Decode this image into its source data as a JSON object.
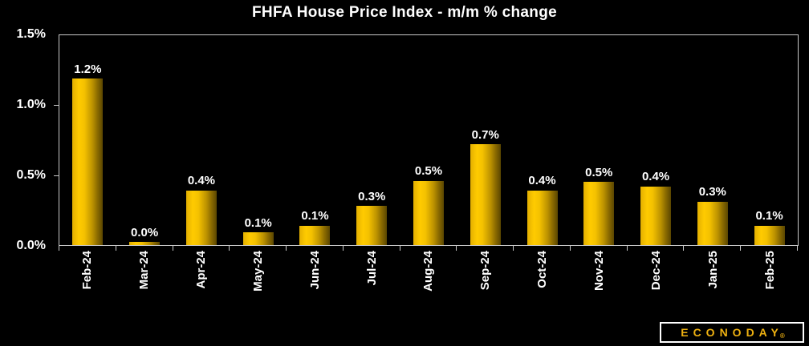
{
  "chart_data": {
    "type": "bar",
    "title": "FHFA House Price Index - m/m % change",
    "categories": [
      "Feb-24",
      "Mar-24",
      "Apr-24",
      "May-24",
      "Jun-24",
      "Jul-24",
      "Aug-24",
      "Sep-24",
      "Oct-24",
      "Nov-24",
      "Dec-24",
      "Jan-25",
      "Feb-25"
    ],
    "values": [
      1.2,
      0.0,
      0.4,
      0.1,
      0.1,
      0.3,
      0.5,
      0.7,
      0.4,
      0.5,
      0.4,
      0.3,
      0.1
    ],
    "bar_labels": [
      "1.2%",
      "0.0%",
      "0.4%",
      "0.1%",
      "0.1%",
      "0.3%",
      "0.5%",
      "0.7%",
      "0.4%",
      "0.5%",
      "0.4%",
      "0.3%",
      "0.1%"
    ],
    "values_precise": [
      1.19,
      0.02,
      0.39,
      0.09,
      0.14,
      0.28,
      0.46,
      0.72,
      0.39,
      0.45,
      0.42,
      0.31,
      0.14
    ],
    "xlabel": "",
    "ylabel": "",
    "ylim": [
      0,
      1.5
    ],
    "yticks": [
      {
        "label": "1.5%",
        "value": 1.5
      },
      {
        "label": "1.0%",
        "value": 1.0
      },
      {
        "label": "0.5%",
        "value": 0.5
      },
      {
        "label": "0.0%",
        "value": 0.0
      }
    ],
    "grid": false,
    "legend": null,
    "colors": {
      "background": "#000000",
      "text": "#ffffff",
      "axis_border": "#c9c9c9",
      "bar_bright": "#ffcb00",
      "bar_dark": "#5a4600"
    }
  },
  "branding": {
    "logo_text": "ECONODAY",
    "registered_mark": "®",
    "logo_text_color": "#eeb111"
  }
}
